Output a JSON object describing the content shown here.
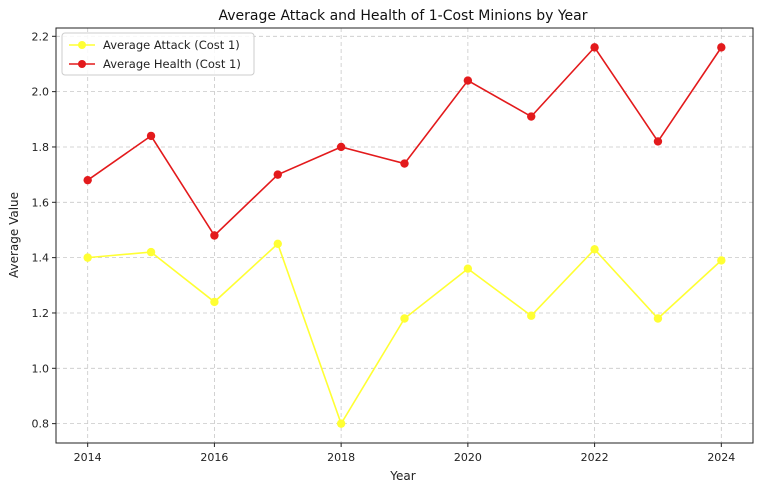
{
  "chart_data": {
    "type": "line",
    "title": "Average Attack and Health of 1-Cost Minions by Year",
    "xlabel": "Year",
    "ylabel": "Average Value",
    "x": [
      2014,
      2015,
      2016,
      2017,
      2018,
      2019,
      2020,
      2021,
      2022,
      2023,
      2024
    ],
    "xticks": [
      "2014",
      "2016",
      "2018",
      "2020",
      "2022",
      "2024"
    ],
    "yticks": [
      "0.8",
      "1.0",
      "1.2",
      "1.4",
      "1.6",
      "1.8",
      "2.0",
      "2.2"
    ],
    "xlim": [
      2013.5,
      2024.5
    ],
    "ylim": [
      0.73,
      2.23
    ],
    "grid": true,
    "legend_position": "top-left",
    "series": [
      {
        "name": "Average Attack (Cost 1)",
        "color": "#ffff33",
        "values": [
          1.4,
          1.42,
          1.24,
          1.45,
          0.8,
          1.18,
          1.36,
          1.19,
          1.43,
          1.18,
          1.39
        ]
      },
      {
        "name": "Average Health (Cost 1)",
        "color": "#e31a1c",
        "values": [
          1.68,
          1.84,
          1.48,
          1.7,
          1.8,
          1.74,
          2.04,
          1.91,
          2.16,
          1.82,
          2.16
        ]
      }
    ]
  }
}
